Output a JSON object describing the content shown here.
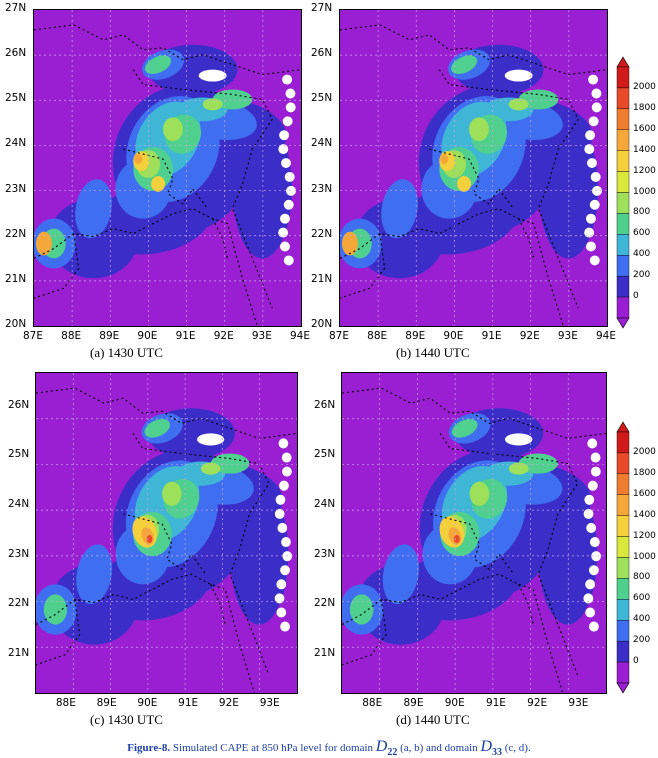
{
  "panels_top": {
    "x_ticks": [
      "87E",
      "88E",
      "89E",
      "90E",
      "91E",
      "92E",
      "93E",
      "94E"
    ],
    "y_ticks": [
      "27N",
      "26N",
      "25N",
      "24N",
      "23N",
      "22N",
      "21N",
      "20N"
    ]
  },
  "panels_bottom": {
    "x_ticks": [
      "88E",
      "89E",
      "90E",
      "91E",
      "92E",
      "93E"
    ],
    "y_ticks": [
      "26N",
      "25N",
      "24N",
      "23N",
      "22N",
      "21N"
    ]
  },
  "captions": {
    "a": "(a) 1430 UTC",
    "b": "(b) 1440 UTC",
    "c": "(c) 1430 UTC",
    "d": "(d) 1440 UTC"
  },
  "colorbar": {
    "labels": [
      "2000",
      "1800",
      "1600",
      "1400",
      "1200",
      "1000",
      "800",
      "600",
      "400",
      "200",
      "0"
    ],
    "colors": [
      "#d11a1a",
      "#e84a2a",
      "#f07c30",
      "#f5a73a",
      "#f4d03c",
      "#d9e83a",
      "#9fe05a",
      "#4fd08f",
      "#3fb6d6",
      "#3f6ef0",
      "#3b2ec8",
      "#9b1fd2"
    ]
  },
  "figure_caption": {
    "label": "Figure-8.",
    "text_1": "Simulated CAPE at 850 hPa level for domain",
    "d22_letter": "D",
    "d22_sub": "22",
    "text_2": "(a, b) and domain",
    "d33_letter": "D",
    "d33_sub": "33",
    "text_3": "(c, d)."
  }
}
